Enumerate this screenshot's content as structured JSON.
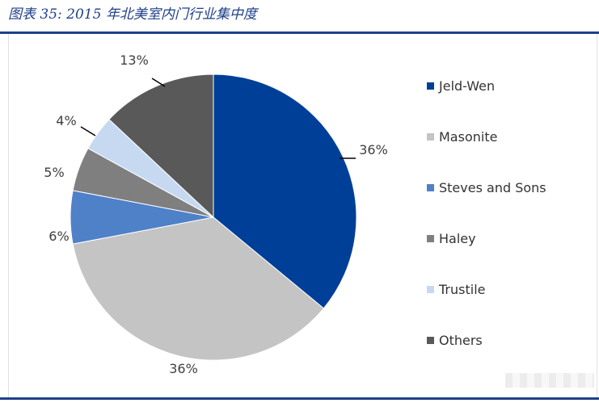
{
  "title": "图表 35:  2015 年北美室内门行业集中度",
  "chart_data": {
    "type": "pie",
    "categories": [
      "Jeld-Wen",
      "Masonite",
      "Steves and Sons",
      "Haley",
      "Trustile",
      "Others"
    ],
    "values": [
      36,
      36,
      6,
      5,
      4,
      13
    ],
    "labels": [
      "36%",
      "36%",
      "6%",
      "5%",
      "4%",
      "13%"
    ],
    "colors": [
      "#003f98",
      "#c4c4c4",
      "#4f81c9",
      "#7f7f7f",
      "#c6d9f1",
      "#595959"
    ],
    "legend_position": "right",
    "start_angle": "12 o'clock",
    "direction": "clockwise"
  }
}
